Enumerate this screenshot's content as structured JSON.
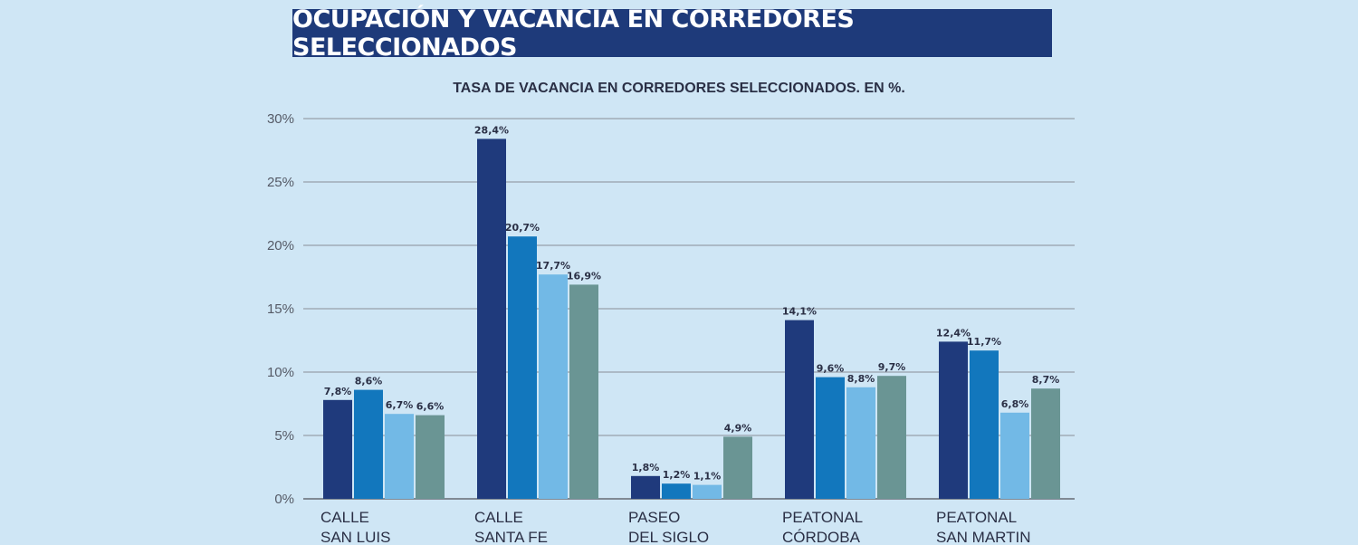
{
  "header": {
    "title": "OCUPACIÓN Y VACANCIA EN CORREDORES SELECCIONADOS"
  },
  "chart_data": {
    "type": "bar",
    "title": "TASA DE VACANCIA EN CORREDORES SELECCIONADOS.  EN %.",
    "categories": [
      [
        "CALLE",
        "SAN LUIS"
      ],
      [
        "CALLE",
        "SANTA FE"
      ],
      [
        "PASEO",
        "DEL SIGLO"
      ],
      [
        "PEATONAL",
        "CÓRDOBA"
      ],
      [
        "PEATONAL",
        "SAN MARTIN"
      ]
    ],
    "series": [
      {
        "values": [
          7.8,
          28.4,
          1.8,
          14.1,
          12.4
        ],
        "labels": [
          "7,8%",
          "28,4%",
          "1,8%",
          "14,1%",
          "12,4%"
        ],
        "color": "#1f3a7c"
      },
      {
        "values": [
          8.6,
          20.7,
          1.2,
          9.6,
          11.7
        ],
        "labels": [
          "8,6%",
          "20,7%",
          "1,2%",
          "9,6%",
          "11,7%"
        ],
        "color": "#1277bd"
      },
      {
        "values": [
          6.7,
          17.7,
          1.1,
          8.8,
          6.8
        ],
        "labels": [
          "6,7%",
          "17,7%",
          "1,1%",
          "8,8%",
          "6,8%"
        ],
        "color": "#72b9e6"
      },
      {
        "values": [
          6.6,
          16.9,
          4.9,
          9.7,
          8.7
        ],
        "labels": [
          "6,6%",
          "16,9%",
          "4,9%",
          "9,7%",
          "8,7%"
        ],
        "color": "#6a9594"
      }
    ],
    "ylim": [
      0,
      30
    ],
    "yticks": [
      0,
      5,
      10,
      15,
      20,
      25,
      30
    ],
    "ytick_labels": [
      "0%",
      "5%",
      "10%",
      "15%",
      "20%",
      "25%",
      "30%"
    ],
    "grid": true
  }
}
